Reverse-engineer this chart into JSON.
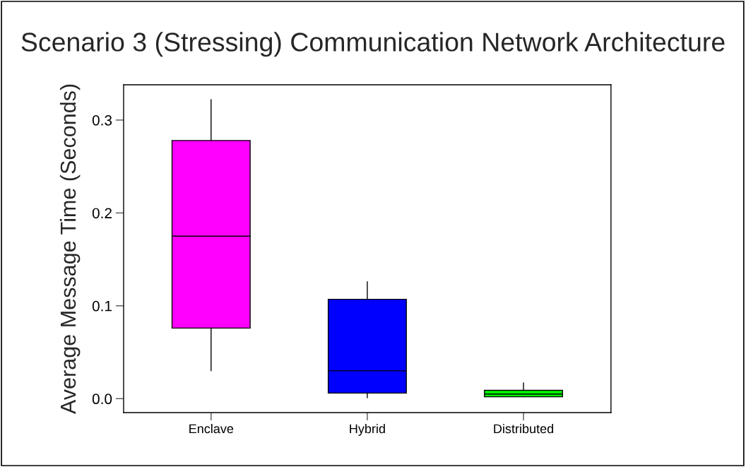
{
  "chart_data": {
    "type": "box",
    "title": "Scenario 3 (Stressing) Communication Network Architecture",
    "ylabel": "Average Message Time (Seconds)",
    "categories": [
      "Enclave",
      "Hybrid",
      "Distributed"
    ],
    "colors": [
      "#ff00ff",
      "#0000ff",
      "#00ff00"
    ],
    "boxes": [
      {
        "low": 0.03,
        "q1": 0.076,
        "median": 0.175,
        "q3": 0.278,
        "high": 0.322
      },
      {
        "low": 0.001,
        "q1": 0.006,
        "median": 0.03,
        "q3": 0.107,
        "high": 0.126
      },
      {
        "low": 0.002,
        "q1": 0.002,
        "median": 0.005,
        "q3": 0.009,
        "high": 0.017
      }
    ],
    "ylim": [
      -0.015,
      0.338
    ],
    "yticks": [
      {
        "value": 0,
        "label": "0.0"
      },
      0.1,
      0.2,
      0.3
    ],
    "grid": false,
    "legend": false
  }
}
